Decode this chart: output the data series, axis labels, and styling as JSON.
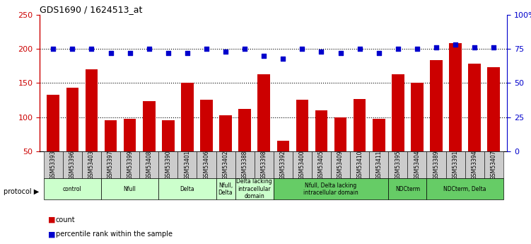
{
  "title": "GDS1690 / 1624513_at",
  "samples": [
    "GSM53393",
    "GSM53396",
    "GSM53403",
    "GSM53397",
    "GSM53399",
    "GSM53408",
    "GSM53390",
    "GSM53401",
    "GSM53406",
    "GSM53402",
    "GSM53388",
    "GSM53398",
    "GSM53392",
    "GSM53400",
    "GSM53405",
    "GSM53409",
    "GSM53410",
    "GSM53411",
    "GSM53395",
    "GSM53404",
    "GSM53389",
    "GSM53391",
    "GSM53394",
    "GSM53407"
  ],
  "counts": [
    133,
    143,
    170,
    95,
    97,
    123,
    95,
    150,
    125,
    103,
    112,
    163,
    65,
    125,
    110,
    100,
    127,
    97,
    163,
    150,
    183,
    208,
    178,
    173
  ],
  "percentile": [
    75,
    75,
    75,
    72,
    72,
    75,
    72,
    72,
    75,
    73,
    75,
    70,
    68,
    75,
    73,
    72,
    75,
    72,
    75,
    75,
    76,
    78,
    76,
    76
  ],
  "bar_color": "#cc0000",
  "dot_color": "#0000cc",
  "protocol_groups": [
    {
      "label": "control",
      "start": 0,
      "end": 2,
      "color": "#ccffcc"
    },
    {
      "label": "Nfull",
      "start": 3,
      "end": 5,
      "color": "#ccffcc"
    },
    {
      "label": "Delta",
      "start": 6,
      "end": 8,
      "color": "#ccffcc"
    },
    {
      "label": "Nfull,\nDelta",
      "start": 9,
      "end": 9,
      "color": "#ccffcc"
    },
    {
      "label": "Delta lacking\nintracellular\ndomain",
      "start": 10,
      "end": 11,
      "color": "#ccffcc"
    },
    {
      "label": "Nfull, Delta lacking\nintracellular domain",
      "start": 12,
      "end": 17,
      "color": "#66cc66"
    },
    {
      "label": "NDCterm",
      "start": 18,
      "end": 19,
      "color": "#66cc66"
    },
    {
      "label": "NDCterm, Delta",
      "start": 20,
      "end": 23,
      "color": "#66cc66"
    }
  ],
  "ylim_left": [
    50,
    250
  ],
  "ylim_right": [
    0,
    100
  ],
  "yticks_left": [
    50,
    100,
    150,
    200,
    250
  ],
  "yticks_right": [
    0,
    25,
    50,
    75,
    100
  ],
  "ytick_labels_right": [
    "0",
    "25",
    "50",
    "75",
    "100%"
  ],
  "grid_values": [
    100,
    150,
    200
  ],
  "bar_width": 0.65,
  "label_bg_color": "#cccccc",
  "protocol_label": "protocol ▶"
}
